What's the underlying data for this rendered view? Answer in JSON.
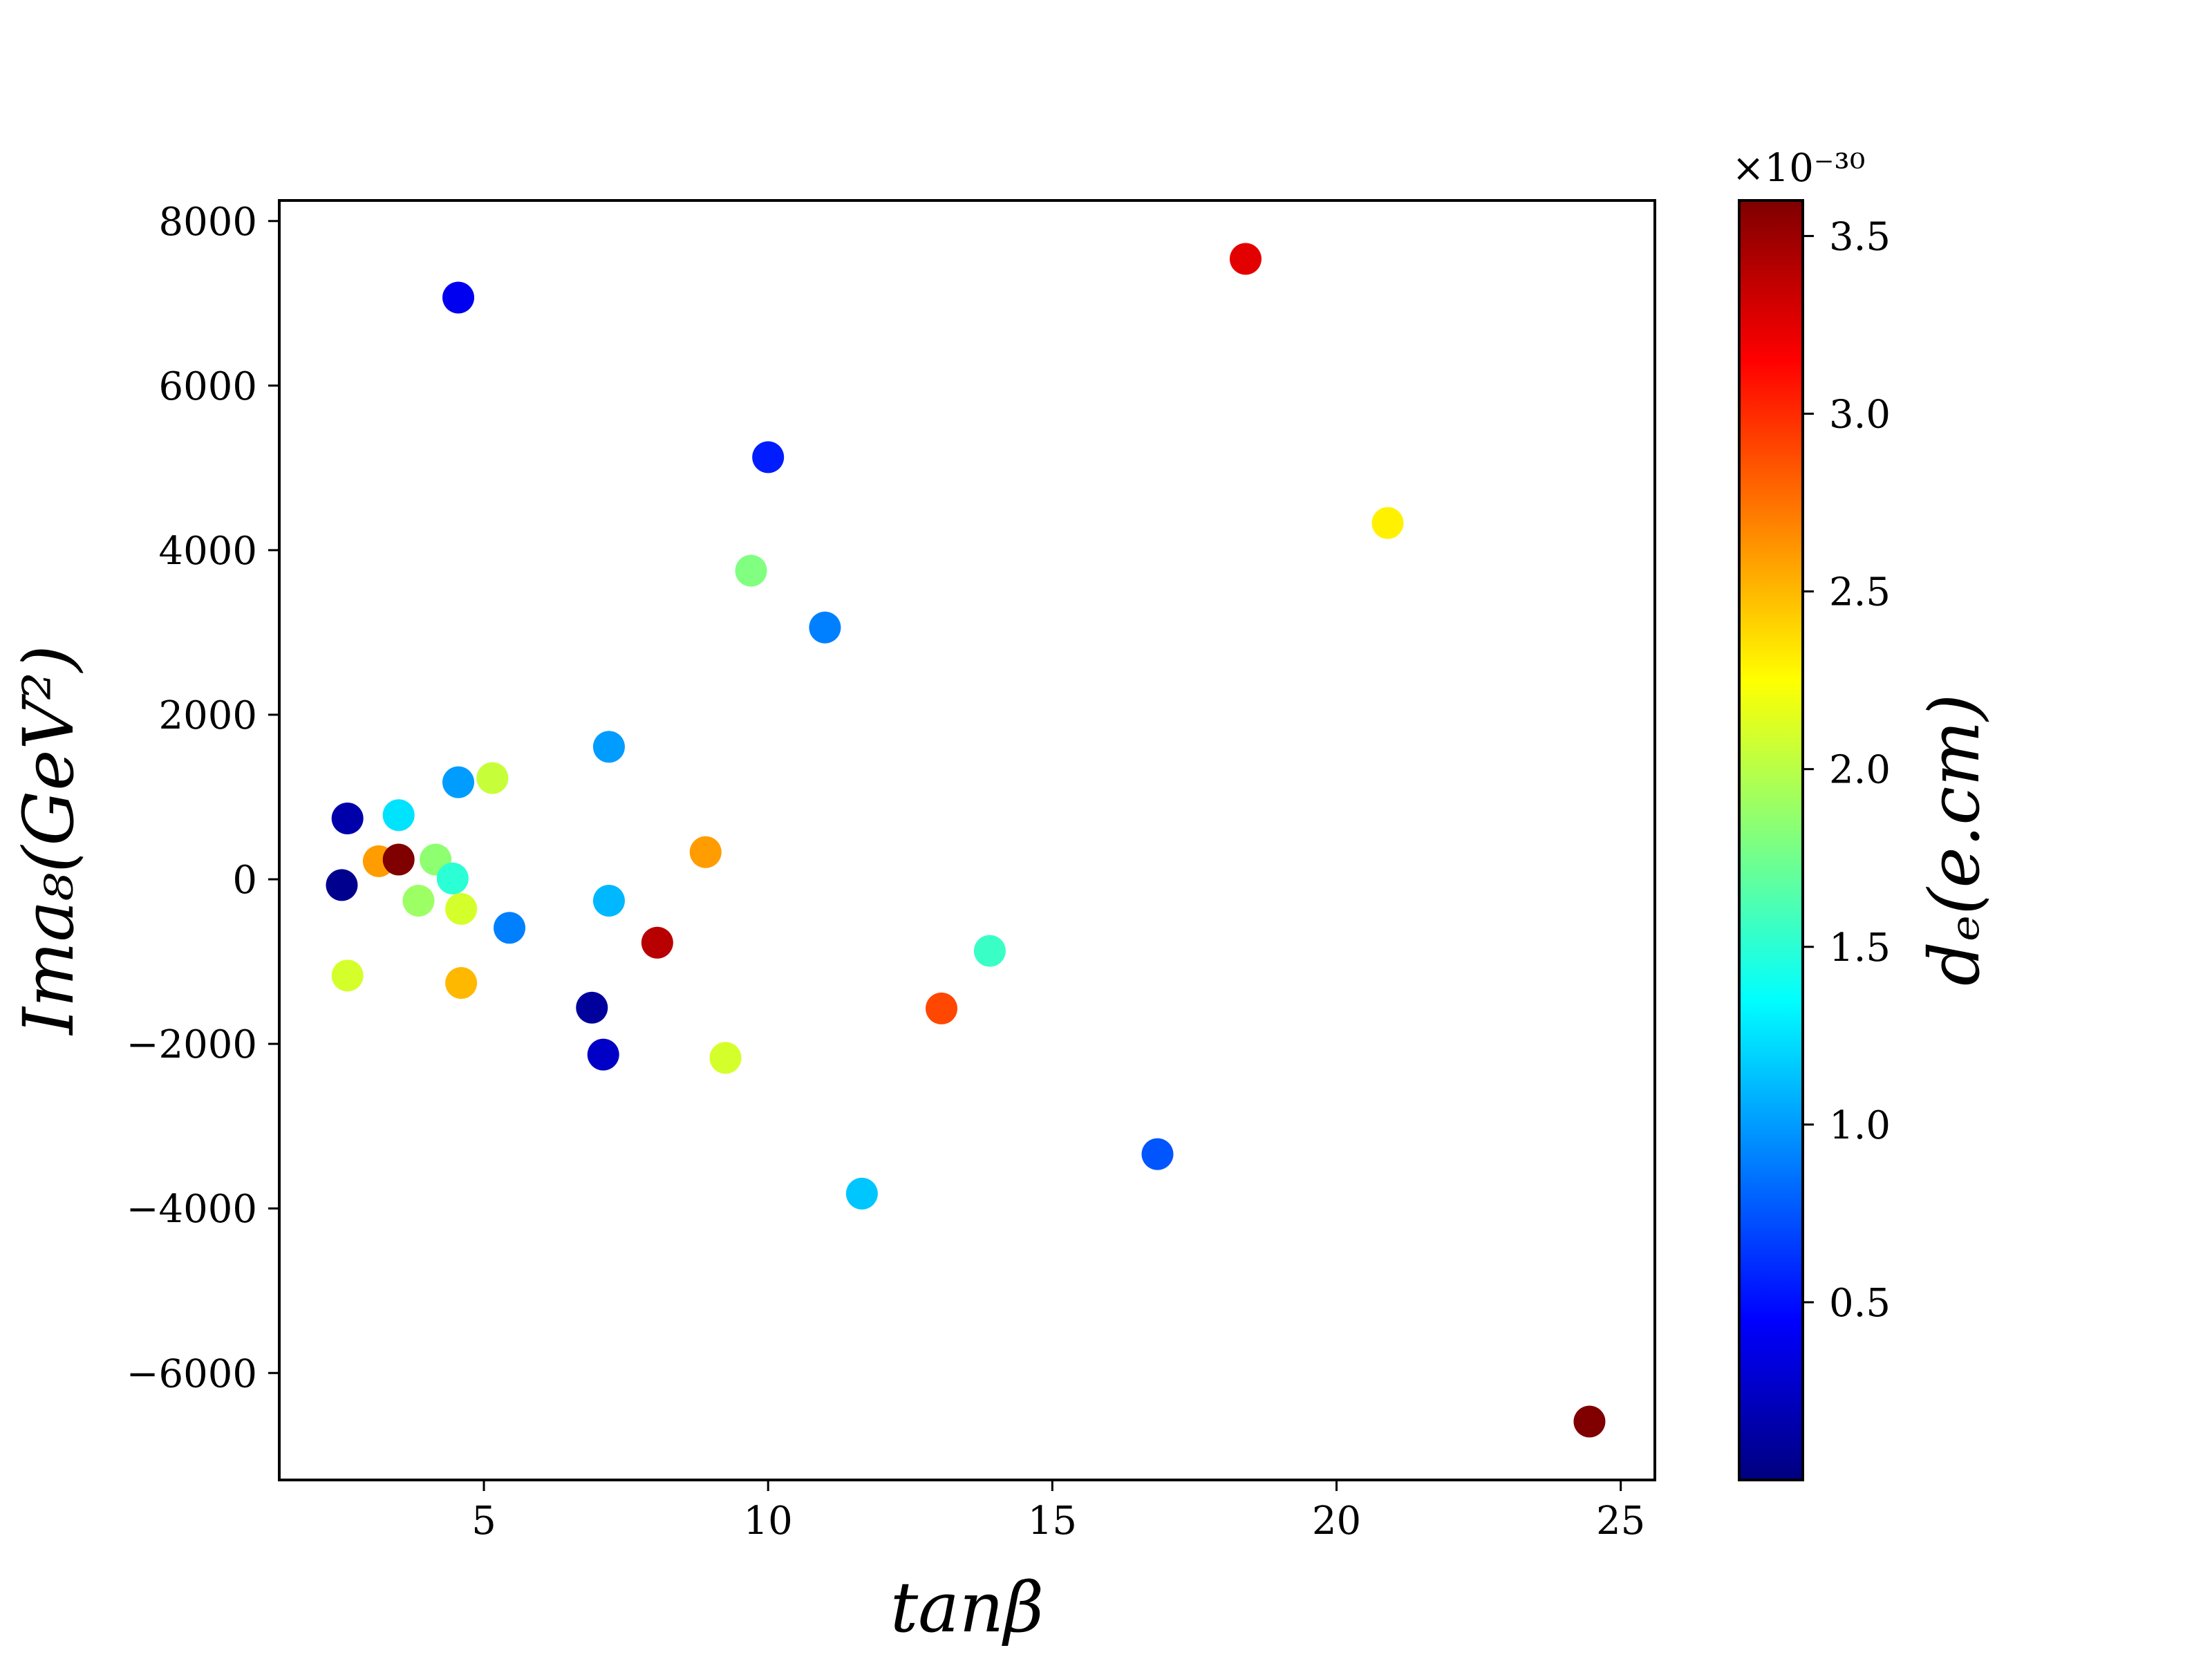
{
  "chart_data": {
    "type": "scatter",
    "xlabel": "tanβ",
    "ylabel": "Ima₈(GeV²)",
    "xlim": [
      1.4,
      25.6
    ],
    "ylim": [
      -7300,
      8250
    ],
    "x_ticks": [
      5,
      10,
      15,
      20,
      25
    ],
    "x_tick_labels": [
      "5",
      "10",
      "15",
      "20",
      "25"
    ],
    "y_ticks": [
      -6000,
      -4000,
      -2000,
      0,
      2000,
      4000,
      6000,
      8000
    ],
    "y_tick_labels": [
      "−6000",
      "−4000",
      "−2000",
      "0",
      "2000",
      "4000",
      "6000",
      "8000"
    ],
    "grid": false,
    "colorbar": {
      "label": "dₑ(e.cm)",
      "multiplier": "×10⁻³⁰",
      "colormap": "jet",
      "range": [
        0.0,
        3.6
      ],
      "ticks": [
        0.5,
        1.0,
        1.5,
        2.0,
        2.5,
        3.0,
        3.5
      ],
      "tick_labels": [
        "0.5",
        "1.0",
        "1.5",
        "2.0",
        "2.5",
        "3.0",
        "3.5"
      ]
    },
    "points": [
      {
        "x": 4.55,
        "y": 7070,
        "c": 0.4
      },
      {
        "x": 18.4,
        "y": 7540,
        "c": 3.25
      },
      {
        "x": 10.0,
        "y": 5130,
        "c": 0.55
      },
      {
        "x": 20.9,
        "y": 4330,
        "c": 2.3
      },
      {
        "x": 9.7,
        "y": 3750,
        "c": 1.8
      },
      {
        "x": 11.0,
        "y": 3060,
        "c": 0.9
      },
      {
        "x": 7.2,
        "y": 1610,
        "c": 1.0
      },
      {
        "x": 4.55,
        "y": 1180,
        "c": 1.0
      },
      {
        "x": 5.15,
        "y": 1230,
        "c": 2.05
      },
      {
        "x": 2.6,
        "y": 740,
        "c": 0.15
      },
      {
        "x": 3.5,
        "y": 780,
        "c": 1.25
      },
      {
        "x": 3.15,
        "y": 220,
        "c": 2.6
      },
      {
        "x": 3.5,
        "y": 240,
        "c": 3.6
      },
      {
        "x": 4.15,
        "y": 240,
        "c": 1.85
      },
      {
        "x": 4.45,
        "y": 10,
        "c": 1.5
      },
      {
        "x": 2.5,
        "y": -70,
        "c": 0.05
      },
      {
        "x": 8.9,
        "y": 330,
        "c": 2.6
      },
      {
        "x": 3.85,
        "y": -260,
        "c": 1.9
      },
      {
        "x": 4.6,
        "y": -360,
        "c": 2.1
      },
      {
        "x": 7.2,
        "y": -260,
        "c": 1.1
      },
      {
        "x": 5.45,
        "y": -590,
        "c": 0.9
      },
      {
        "x": 8.05,
        "y": -770,
        "c": 3.4
      },
      {
        "x": 13.9,
        "y": -870,
        "c": 1.55
      },
      {
        "x": 2.6,
        "y": -1170,
        "c": 2.1
      },
      {
        "x": 4.6,
        "y": -1260,
        "c": 2.5
      },
      {
        "x": 6.9,
        "y": -1560,
        "c": 0.1
      },
      {
        "x": 13.05,
        "y": -1570,
        "c": 2.9
      },
      {
        "x": 7.1,
        "y": -2130,
        "c": 0.25
      },
      {
        "x": 9.25,
        "y": -2170,
        "c": 2.1
      },
      {
        "x": 11.65,
        "y": -3820,
        "c": 1.15
      },
      {
        "x": 16.85,
        "y": -3340,
        "c": 0.75
      },
      {
        "x": 24.45,
        "y": -6590,
        "c": 3.6
      }
    ]
  }
}
